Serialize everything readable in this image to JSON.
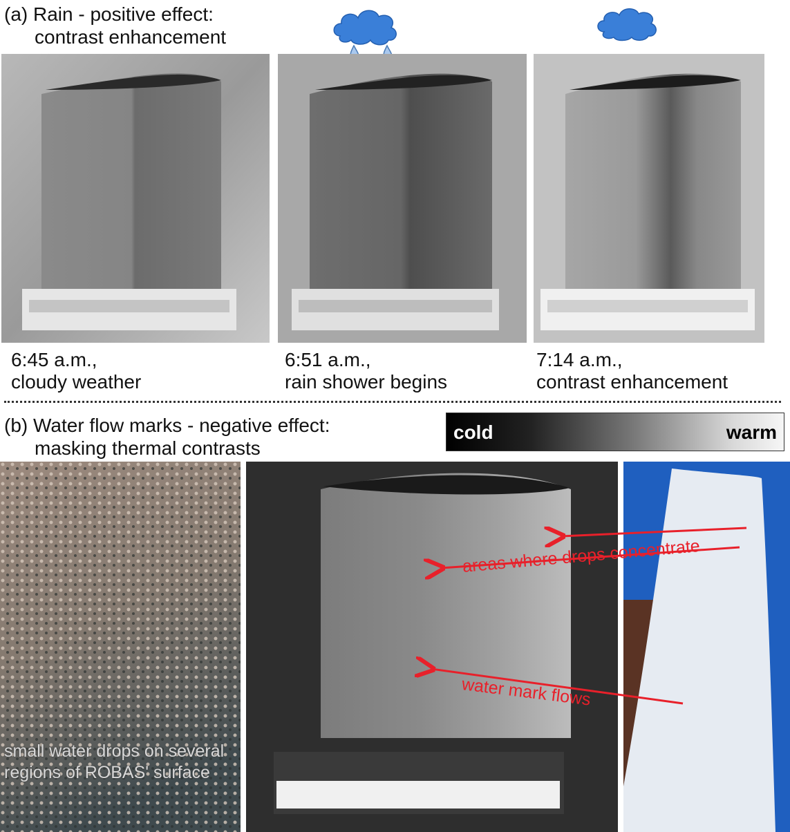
{
  "section_a": {
    "heading_line1": "(a) Rain - positive effect:",
    "heading_line2": "contrast enhancement",
    "images": [
      {
        "caption_line1": "6:45 a.m.,",
        "caption_line2": "cloudy weather",
        "icon": "none"
      },
      {
        "caption_line1": "6:51 a.m.,",
        "caption_line2": "rain shower begins",
        "icon": "rain-cloud-icon"
      },
      {
        "caption_line1": "7:14 a.m.,",
        "caption_line2": "contrast enhancement",
        "icon": "cloud-icon"
      }
    ]
  },
  "section_b": {
    "heading_line1": "(b) Water flow marks - negative effect:",
    "heading_line2": "masking thermal contrasts",
    "scale": {
      "cold_label": "cold",
      "warm_label": "warm"
    },
    "photo_left_text": "small water drops on several regions of ROBAS' surface",
    "annotation_drops": "areas where drops concentrate",
    "annotation_flows": "water mark flows"
  },
  "colors": {
    "annotation": "#e8202a",
    "cloud": "#3a7fd8",
    "raindrop": "#a9c8ee"
  }
}
